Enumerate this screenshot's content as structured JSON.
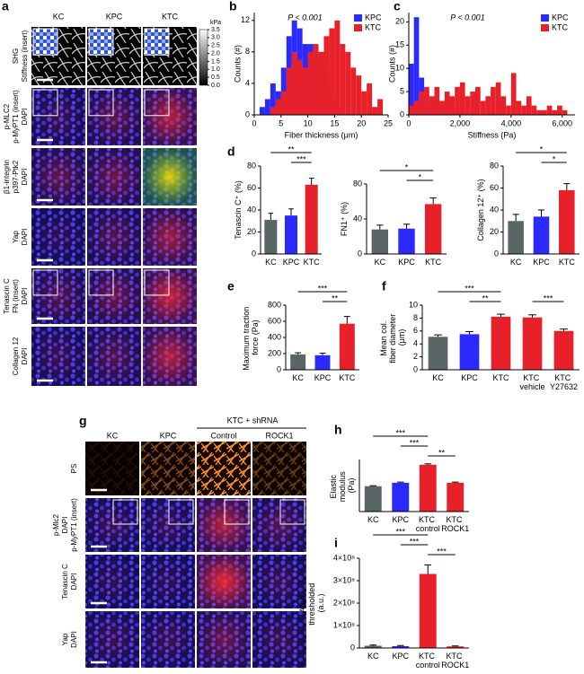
{
  "figure_a": {
    "label": "a",
    "columns": [
      "KC",
      "KPC",
      "KTC"
    ],
    "rows": [
      [
        {
          "text": "SHG",
          "color": "#000000"
        },
        {
          "text": "Stiffness (insert)",
          "color": "#000000"
        }
      ],
      [
        {
          "text": "p-MLC2",
          "color": "#e8202a"
        },
        {
          "text": "p-MyPT1 (insert)",
          "color": "#e8202a"
        },
        {
          "text": "DAPI",
          "color": "#2a2aff"
        }
      ],
      [
        {
          "text": "β1-integrin",
          "color": "#22b14c"
        },
        {
          "text": "p397-Ptk2",
          "color": "#e8202a"
        },
        {
          "text": "DAPI",
          "color": "#2a2aff"
        }
      ],
      [
        {
          "text": "Yap",
          "color": "#e8202a"
        },
        {
          "text": "DAPI",
          "color": "#2a2aff"
        }
      ],
      [
        {
          "text": "Tenascin C",
          "color": "#e8202a"
        },
        {
          "text": "FN (insert)",
          "color": "#e8202a"
        },
        {
          "text": "DAPI",
          "color": "#2a2aff"
        }
      ],
      [
        {
          "text": "Collagen 12",
          "color": "#e8202a"
        },
        {
          "text": "DAPI",
          "color": "#2a2aff"
        }
      ]
    ],
    "colorbar": {
      "title": "kPa",
      "lim": [
        0,
        3.5
      ],
      "ticks": [
        {
          "value": 0,
          "label": "0.0"
        },
        0.5,
        {
          "value": 1,
          "label": "1.0"
        },
        1.5,
        {
          "value": 2,
          "label": "2.0"
        },
        2.5,
        {
          "value": 3,
          "label": "3.0"
        },
        3.5
      ]
    }
  },
  "figure_g": {
    "label": "g",
    "group": "KTC + shRNA",
    "columns": [
      "KC",
      "KPC",
      "Control",
      "ROCK1"
    ],
    "rows": [
      [
        {
          "text": "PS",
          "color": "#000000"
        }
      ],
      [
        {
          "text": "p-Mlc2",
          "color": "#e8202a"
        },
        {
          "text": "DAPI",
          "color": "#2a2aff"
        },
        {
          "text": "p-MyPT1 (insert)",
          "color": "#e8202a"
        }
      ],
      [
        {
          "text": "Tenascin C",
          "color": "#e8202a"
        },
        {
          "text": "DAPI",
          "color": "#2a2aff"
        }
      ],
      [
        {
          "text": "Yap",
          "color": "#e8202a"
        },
        {
          "text": "DAPI",
          "color": "#2a2aff"
        }
      ]
    ]
  },
  "chart_data": [
    {
      "label": "b",
      "type": "histogram",
      "annotation": "P < 0.001",
      "xlabel": "Fiber thickness (μm)",
      "ylabel": "Counts (#)",
      "bins": [
        1,
        2,
        3,
        4,
        5,
        6,
        7,
        8,
        9,
        10,
        11,
        12,
        13,
        14,
        15,
        16,
        17,
        18,
        19,
        20,
        21,
        22,
        23,
        24
      ],
      "series": [
        {
          "name": "KPC",
          "color": "#2a2aff",
          "values": [
            1,
            2,
            4,
            3,
            6,
            10,
            12,
            11,
            9,
            9,
            7,
            6,
            4,
            2,
            1,
            0,
            0,
            0,
            0,
            0,
            0,
            0,
            0
          ]
        },
        {
          "name": "KTC",
          "color": "#e8202a",
          "values": [
            0,
            0,
            1,
            2,
            3,
            6,
            8,
            7,
            6,
            8,
            9,
            8,
            10,
            11,
            12,
            9,
            8,
            6,
            5,
            3,
            4,
            1,
            2
          ]
        }
      ],
      "xlim": [
        0,
        25
      ],
      "xticks": [
        0,
        5,
        10,
        15,
        20,
        25
      ],
      "ylim": [
        0,
        13
      ],
      "yticks": [
        0,
        4,
        8,
        12
      ],
      "legend": "upper right"
    },
    {
      "label": "c",
      "type": "histogram",
      "annotation": "P < 0.001",
      "xlabel": "Stiffness (Pa)",
      "ylabel": "Counts (#)",
      "bins": [
        0,
        200,
        400,
        600,
        800,
        1000,
        1200,
        1400,
        1600,
        1800,
        2000,
        2200,
        2400,
        2600,
        2800,
        3000,
        3200,
        3400,
        3600,
        3800,
        4000,
        4200,
        4400,
        4600,
        4800,
        5000,
        5200,
        5400,
        5600,
        5800,
        6000,
        6200,
        6400
      ],
      "series": [
        {
          "name": "KPC",
          "color": "#2a2aff",
          "values": [
            11,
            21,
            8,
            4,
            3,
            2,
            3,
            1,
            2,
            1,
            1,
            0,
            1,
            0,
            0,
            0,
            0,
            0,
            0,
            0,
            0,
            0,
            0,
            0,
            0,
            0,
            0,
            0,
            0,
            0,
            0,
            0
          ]
        },
        {
          "name": "KTC",
          "color": "#e8202a",
          "values": [
            2,
            3,
            5,
            6,
            4,
            6,
            3,
            5,
            4,
            6,
            7,
            4,
            5,
            6,
            3,
            4,
            6,
            7,
            4,
            2,
            9,
            3,
            2,
            4,
            2,
            1,
            1,
            2,
            1,
            2,
            1,
            0
          ]
        }
      ],
      "xlim": [
        0,
        6500
      ],
      "xticks": [
        0,
        {
          "value": 2000,
          "label": "2,000"
        },
        {
          "value": 4000,
          "label": "4,000"
        },
        {
          "value": 6000,
          "label": "6,000"
        }
      ],
      "ylim": [
        0,
        22
      ],
      "yticks": [
        0,
        5,
        10,
        15,
        20
      ],
      "legend": "upper right"
    },
    {
      "label": "d",
      "type": "bar",
      "ylabel": "Tenascin C⁺ (%)",
      "categories": [
        "KC",
        "KPC",
        "KTC"
      ],
      "values": [
        31,
        35,
        63
      ],
      "errors": [
        6,
        6,
        6
      ],
      "colors": [
        "#5a6666",
        "#2a2aff",
        "#e8202a"
      ],
      "ylim": [
        0,
        80
      ],
      "yticks": [
        0,
        20,
        40,
        60,
        80
      ],
      "comparisons": [
        {
          "between": [
            0,
            2
          ],
          "label": "**"
        },
        {
          "between": [
            1,
            2
          ],
          "label": "***"
        }
      ]
    },
    {
      "type": "bar",
      "ylabel": "FN1⁺ (%)",
      "categories": [
        "KC",
        "KPC",
        "KTC"
      ],
      "values": [
        28,
        29,
        57
      ],
      "errors": [
        5,
        5,
        7
      ],
      "colors": [
        "#5a6666",
        "#2a2aff",
        "#e8202a"
      ],
      "ylim": [
        0,
        80
      ],
      "yticks": [
        0,
        40,
        80
      ],
      "comparisons": [
        {
          "between": [
            0,
            2
          ],
          "label": "*"
        },
        {
          "between": [
            1,
            2
          ],
          "label": "*"
        }
      ]
    },
    {
      "type": "bar",
      "ylabel": "Collagen 12⁺ (%)",
      "categories": [
        "KC",
        "KPC",
        "KTC"
      ],
      "values": [
        30,
        34,
        58
      ],
      "errors": [
        6,
        6,
        6
      ],
      "colors": [
        "#5a6666",
        "#2a2aff",
        "#e8202a"
      ],
      "ylim": [
        0,
        80
      ],
      "yticks": [
        0,
        20,
        40,
        60,
        80
      ],
      "comparisons": [
        {
          "between": [
            0,
            2
          ],
          "label": "*"
        },
        {
          "between": [
            1,
            2
          ],
          "label": "*"
        }
      ]
    },
    {
      "label": "e",
      "type": "bar",
      "ylabel": "Maximum traction force (Pa)",
      "categories": [
        "KC",
        "KPC",
        "KTC"
      ],
      "values": [
        190,
        180,
        570
      ],
      "errors": [
        20,
        25,
        90
      ],
      "colors": [
        "#5a6666",
        "#2a2aff",
        "#e8202a"
      ],
      "ylim": [
        0,
        800
      ],
      "yticks": [
        0,
        200,
        400,
        600,
        800
      ],
      "comparisons": [
        {
          "between": [
            0,
            2
          ],
          "label": "***"
        },
        {
          "between": [
            1,
            2
          ],
          "label": "**"
        }
      ]
    },
    {
      "label": "f",
      "type": "bar",
      "ylabel": "Mean col. fiber diameter (μm)",
      "categories": [
        "KC",
        "KPC",
        "KTC",
        "KTC vehicle",
        "KTC Y27632"
      ],
      "values": [
        5.1,
        5.5,
        8.2,
        8.1,
        6.0
      ],
      "errors": [
        0.3,
        0.4,
        0.4,
        0.4,
        0.3
      ],
      "colors": [
        "#5a6666",
        "#2a2aff",
        "#e8202a",
        "#e8202a",
        "#e8202a"
      ],
      "ylim": [
        0,
        10
      ],
      "yticks": [
        0,
        2,
        4,
        6,
        8,
        10
      ],
      "comparisons": [
        {
          "between": [
            0,
            2
          ],
          "label": "***"
        },
        {
          "between": [
            1,
            2
          ],
          "label": "**"
        },
        {
          "between": [
            3,
            4
          ],
          "label": "***"
        }
      ]
    },
    {
      "label": "h",
      "type": "bar",
      "ylabel": "Elastic modulus (Pa)",
      "categories": [
        "KC",
        "KPC",
        "KTC control",
        "KTC ROCK1"
      ],
      "values": [
        730,
        830,
        1350,
        830
      ],
      "errors": [
        15,
        20,
        25,
        20
      ],
      "colors": [
        "#5a6666",
        "#2a2aff",
        "#e8202a",
        "#e8202a"
      ],
      "ylim": [
        0,
        1500
      ],
      "comparisons": [
        {
          "between": [
            0,
            2
          ],
          "label": "***"
        },
        {
          "between": [
            1,
            2
          ],
          "label": "***"
        },
        {
          "between": [
            2,
            3
          ],
          "label": "**"
        }
      ]
    },
    {
      "label": "i",
      "type": "bar",
      "ylabel": "Area thresholded (a.u.)",
      "categories": [
        "KC",
        "KPC",
        "KTC control",
        "KTC ROCK1"
      ],
      "values": [
        10000000,
        8000000,
        330000000,
        7000000
      ],
      "errors": [
        3000000,
        3000000,
        40000000,
        2000000
      ],
      "colors": [
        "#5a6666",
        "#2a2aff",
        "#e8202a",
        "#e8202a"
      ],
      "ylim": [
        0,
        400000000
      ],
      "yticks": [
        0,
        {
          "value": 100000000,
          "label": "1×10⁸"
        },
        {
          "value": 200000000,
          "label": "2×10⁸"
        },
        {
          "value": 300000000,
          "label": "3×10⁸"
        },
        {
          "value": 400000000,
          "label": "4×10⁸"
        }
      ],
      "comparisons": [
        {
          "between": [
            0,
            2
          ],
          "label": "***"
        },
        {
          "between": [
            1,
            2
          ],
          "label": "***"
        },
        {
          "between": [
            2,
            3
          ],
          "label": "***"
        }
      ]
    }
  ]
}
